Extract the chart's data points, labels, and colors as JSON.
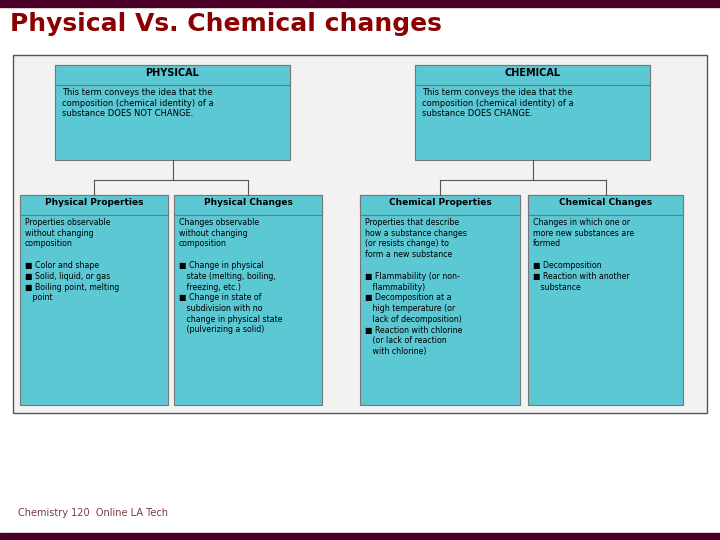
{
  "title": "Physical Vs. Chemical changes",
  "title_color": "#8B0000",
  "title_fontsize": 18,
  "top_bar_color": "#4B0028",
  "bottom_bar_color": "#4B0028",
  "footer_text": "Chemistry 120  Online LA Tech",
  "footer_color": "#7B3A3A",
  "bg_color": "#FFFFFF",
  "diagram_bg": "#F2F2F2",
  "box_bg": "#5BC8D4",
  "box_border": "#777777",
  "physical_title": "PHYSICAL",
  "physical_desc": "This term conveys the idea that the\ncomposition (chemical identity) of a\nsubstance DOES NOT CHANGE.",
  "chemical_title": "CHEMICAL",
  "chemical_desc": "This term conveys the idea that the\ncomposition (chemical identity) of a\nsubstance DOES CHANGE.",
  "phys_props_title": "Physical Properties",
  "phys_props_body": "Properties observable\nwithout changing\ncomposition\n\n■ Color and shape\n■ Solid, liquid, or gas\n■ Boiling point, melting\n   point",
  "phys_changes_title": "Physical Changes",
  "phys_changes_body": "Changes observable\nwithout changing\ncomposition\n\n■ Change in physical\n   state (melting, boiling,\n   freezing, etc.)\n■ Change in state of\n   subdivision with no\n   change in physical state\n   (pulverizing a solid)",
  "chem_props_title": "Chemical Properties",
  "chem_props_body": "Properties that describe\nhow a substance changes\n(or resists change) to\nform a new substance\n\n■ Flammability (or non-\n   flammability)\n■ Decomposition at a\n   high temperature (or\n   lack of decomposition)\n■ Reaction with chlorine\n   (or lack of reaction\n   with chlorine)",
  "chem_changes_title": "Chemical Changes",
  "chem_changes_body": "Changes in which one or\nmore new substances are\nformed\n\n■ Decomposition\n■ Reaction with another\n   substance"
}
